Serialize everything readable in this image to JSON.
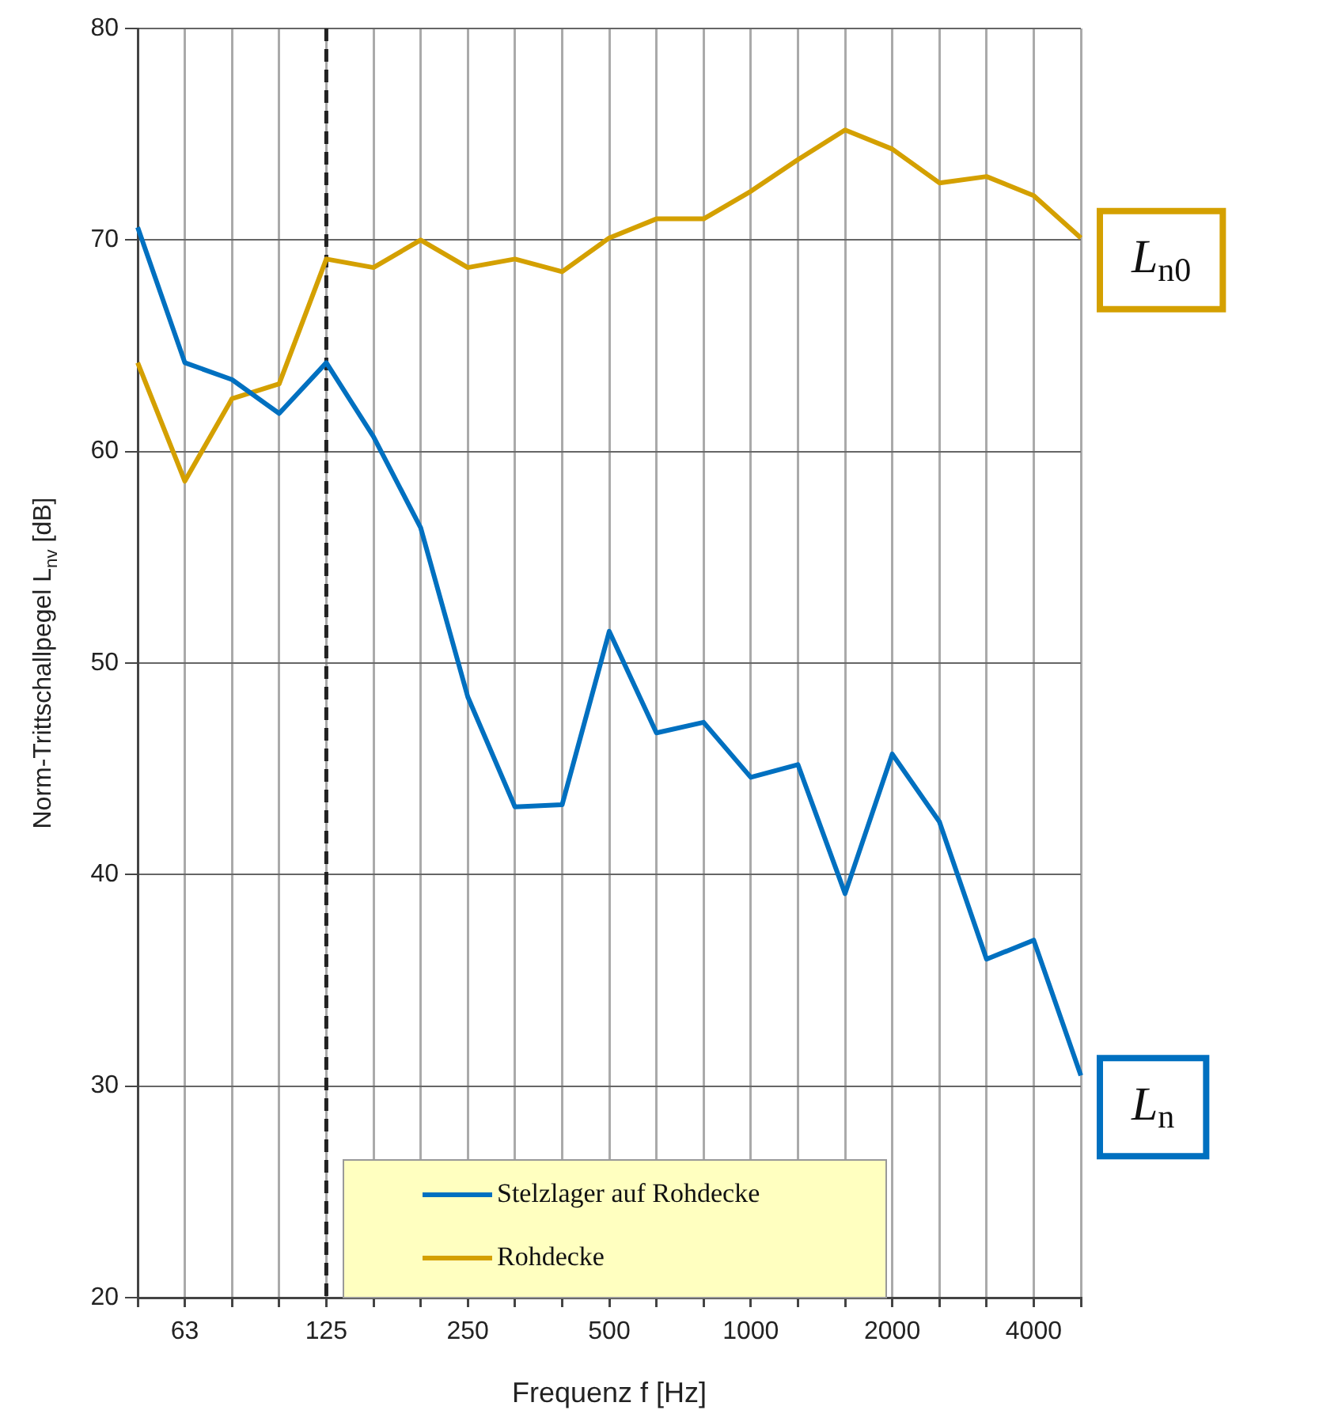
{
  "chart_data": {
    "type": "line",
    "xlabel": "Frequenz f [Hz]",
    "ylabel": "Norm-Trittschallpegel L$_{nv}$ [dB]",
    "categories": [
      null,
      "63",
      null,
      null,
      "125",
      null,
      null,
      "250",
      null,
      null,
      "500",
      null,
      null,
      "1000",
      null,
      null,
      "2000",
      null,
      null,
      "4000",
      null
    ],
    "series": [
      {
        "name": "Stelzlager auf Rohdecke",
        "color": "#0070c0",
        "values": [
          70.6,
          64.2,
          63.4,
          61.8,
          64.2,
          60.7,
          56.4,
          48.4,
          43.2,
          43.3,
          51.5,
          46.7,
          47.2,
          44.6,
          45.2,
          39.1,
          45.7,
          42.5,
          36.0,
          36.9,
          30.5
        ]
      },
      {
        "name": "Rohdecke",
        "color": "#d4a000",
        "values": [
          64.2,
          58.6,
          62.5,
          63.2,
          69.1,
          68.7,
          70.0,
          68.7,
          69.1,
          68.5,
          70.1,
          71.0,
          71.0,
          72.3,
          73.8,
          75.2,
          74.3,
          72.7,
          73.0,
          72.1,
          70.1
        ]
      }
    ],
    "ylim": [
      20,
      80
    ],
    "yticks": [
      20,
      30,
      40,
      50,
      60,
      70,
      80
    ],
    "grid": true,
    "legend": "bottom",
    "marker": "none",
    "line_style": "solid",
    "ref_lines": [
      {
        "axis": "x",
        "value": "125",
        "line_style": "dashed",
        "color": "#222222"
      }
    ],
    "annotations": [
      "L$_{n0}$",
      "L$_{n}$"
    ]
  }
}
